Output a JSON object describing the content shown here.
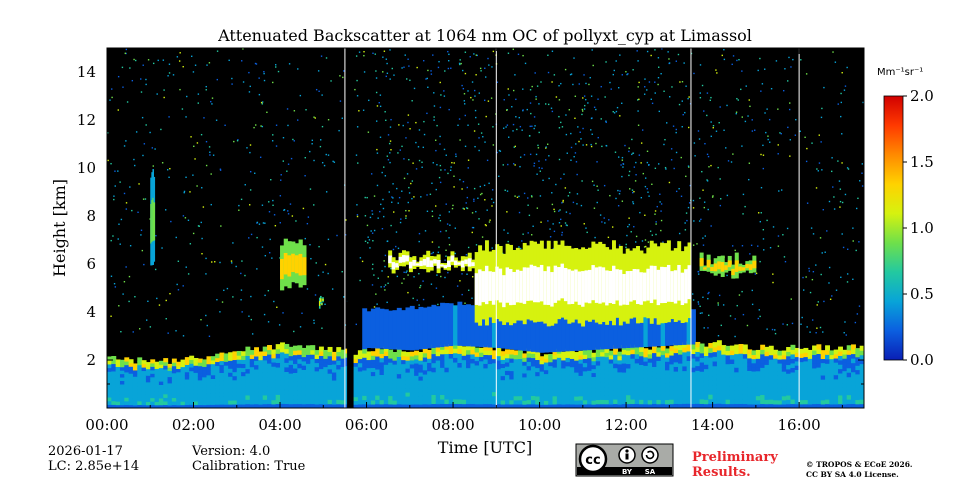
{
  "chart_data": {
    "type": "heatmap",
    "title": "Attenuated Backscatter at 1064 nm OC of pollyxt_cyp at Limassol",
    "xlabel": "Time [UTC]",
    "ylabel": "Height [km]",
    "xlim": [
      0,
      17.5
    ],
    "ylim": [
      0,
      15
    ],
    "x_ticks": [
      0,
      2,
      4,
      6,
      8,
      10,
      12,
      14,
      16
    ],
    "x_tick_labels": [
      "00:00",
      "02:00",
      "04:00",
      "06:00",
      "08:00",
      "10:00",
      "12:00",
      "14:00",
      "16:00"
    ],
    "y_ticks": [
      2,
      4,
      6,
      8,
      10,
      12,
      14
    ],
    "y_tick_labels": [
      "2",
      "4",
      "6",
      "8",
      "10",
      "12",
      "14"
    ],
    "colorbar": {
      "unit": "Mm⁻¹sr⁻¹",
      "range": [
        0.0,
        2.0
      ],
      "ticks": [
        0.0,
        0.5,
        1.0,
        1.5,
        2.0
      ],
      "tick_labels": [
        "0.0",
        "0.5",
        "1.0",
        "1.5",
        "2.0"
      ],
      "colors": [
        "#0a1fb5",
        "#0b5fe0",
        "#08a4d8",
        "#23c9a0",
        "#6fe04a",
        "#d6f20f",
        "#ffd200",
        "#ff8a00",
        "#ff3a00",
        "#d10000"
      ]
    },
    "boundary_layer_top_km": [
      [
        0.0,
        2.1
      ],
      [
        1.0,
        1.9
      ],
      [
        2.0,
        2.1
      ],
      [
        3.0,
        2.4
      ],
      [
        4.0,
        2.6
      ],
      [
        5.0,
        2.5
      ],
      [
        5.6,
        2.3
      ],
      [
        6.0,
        2.5
      ],
      [
        7.0,
        2.4
      ],
      [
        8.0,
        2.6
      ],
      [
        9.0,
        2.5
      ],
      [
        10.0,
        2.3
      ],
      [
        11.0,
        2.4
      ],
      [
        12.0,
        2.5
      ],
      [
        13.0,
        2.6
      ],
      [
        14.0,
        2.7
      ],
      [
        15.0,
        2.5
      ],
      [
        16.0,
        2.5
      ],
      [
        17.5,
        2.6
      ]
    ],
    "cloud_layers": [
      {
        "t_start": 4.0,
        "t_end": 4.6,
        "base_km": 5.0,
        "top_km": 7.2,
        "value": 1.3
      },
      {
        "t_start": 4.9,
        "t_end": 5.0,
        "base_km": 4.2,
        "top_km": 4.8,
        "value": 1.2
      },
      {
        "t_start": 1.0,
        "t_end": 1.1,
        "base_km": 6.0,
        "top_km": 10.1,
        "value": 0.9
      },
      {
        "t_start": 6.5,
        "t_end": 8.5,
        "base_km": 5.7,
        "top_km": 6.6,
        "value": 2.0
      },
      {
        "t_start": 8.5,
        "t_end": 13.5,
        "base_km": 3.5,
        "top_km": 7.0,
        "value": 2.0
      },
      {
        "t_start": 13.7,
        "t_end": 15.0,
        "base_km": 5.5,
        "top_km": 6.5,
        "value": 1.4
      }
    ],
    "data_gaps": [
      {
        "t_start": 5.55,
        "t_end": 5.7
      }
    ],
    "white_lines_hours": [
      5.5,
      9.0,
      13.5,
      16.0
    ]
  },
  "footer": {
    "date": "2026-01-17",
    "lc": "LC: 2.85e+14",
    "version": "Version: 4.0",
    "calibration": "Calibration: True",
    "preliminary_line1": "Preliminary",
    "preliminary_line2": "Results.",
    "copyright_line1": "© TROPOS & ECoE 2026.",
    "copyright_line2": "CC BY SA 4.0 License.",
    "cc_badge_text": "cc",
    "cc_by": "BY",
    "cc_sa": "SA"
  },
  "colors": {
    "background": "#000000",
    "preliminary": "#e8262b",
    "badge": "#a9aba7"
  }
}
